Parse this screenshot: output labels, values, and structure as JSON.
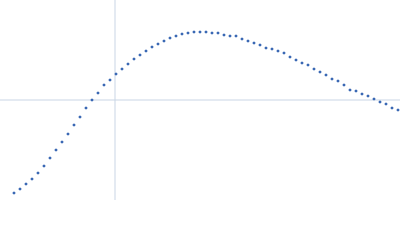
{
  "chart_data": {
    "type": "scatter",
    "x": [
      14,
      20,
      26,
      32,
      38,
      44,
      50,
      56,
      62,
      68,
      74,
      80,
      86,
      92,
      98,
      104,
      110,
      116,
      122,
      128,
      134,
      140,
      146,
      152,
      158,
      164,
      170,
      176,
      182,
      188,
      194,
      200,
      206,
      212,
      218,
      224,
      230,
      236,
      242,
      248,
      254,
      260,
      266,
      272,
      278,
      284,
      290,
      296,
      302,
      308,
      314,
      320,
      326,
      332,
      338,
      344,
      350,
      356,
      362,
      368,
      374,
      380,
      386,
      392,
      398
    ],
    "values": [
      7,
      11,
      16,
      21,
      27,
      34,
      42,
      50,
      58,
      66,
      75,
      83,
      92,
      100,
      107,
      115,
      120,
      126,
      131,
      136,
      141,
      145,
      149,
      153,
      156,
      159,
      162,
      164,
      166,
      167,
      168,
      168,
      168,
      167,
      167,
      165,
      164,
      164,
      161,
      159,
      157,
      155,
      152,
      151,
      149,
      147,
      143,
      140,
      137,
      135,
      131,
      128,
      125,
      121,
      119,
      115,
      110,
      109,
      106,
      104,
      101,
      98,
      96,
      92,
      90
    ],
    "color": "#3a68b4",
    "xlim": [
      0,
      400
    ],
    "ylim": [
      0,
      200
    ],
    "reference_lines": {
      "x": 115,
      "y": 100,
      "color": "#c9d5e4"
    }
  }
}
